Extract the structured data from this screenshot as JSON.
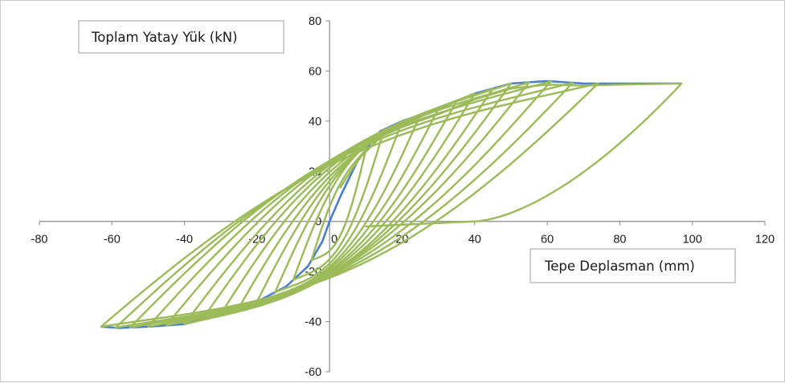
{
  "chart_data": {
    "type": "line",
    "ylabel": "Toplam Yatay Yük (kN)",
    "xlabel": "Tepe Deplasman (mm)",
    "xlim": [
      -80,
      120
    ],
    "ylim": [
      -60,
      80
    ],
    "xticks": [
      -80,
      -60,
      -40,
      -20,
      0,
      20,
      40,
      60,
      80,
      100,
      120
    ],
    "yticks": [
      -60,
      -40,
      -20,
      0,
      20,
      40,
      60,
      80
    ],
    "grid": false,
    "legend": "none",
    "colors": {
      "envelope": "#4a7fcf",
      "hysteresis": "#9bbb59"
    },
    "series": [
      {
        "style": "envelope",
        "points": [
          [
            -63,
            -42
          ],
          [
            -58,
            -42.5
          ],
          [
            -50,
            -42
          ],
          [
            -40,
            -41
          ],
          [
            -30,
            -37
          ],
          [
            -20,
            -32
          ],
          [
            -12,
            -26
          ],
          [
            -6,
            -18
          ],
          [
            -2,
            -8
          ],
          [
            0,
            0
          ],
          [
            3,
            10
          ],
          [
            8,
            25
          ],
          [
            14,
            36
          ],
          [
            20,
            40
          ],
          [
            30,
            45
          ],
          [
            40,
            51
          ],
          [
            50,
            55
          ],
          [
            60,
            56
          ],
          [
            70,
            55
          ],
          [
            80,
            55
          ],
          [
            97,
            55
          ]
        ]
      },
      {
        "style": "hysteresis",
        "loops": [
          {
            "dmax": 10,
            "dmin": -5
          },
          {
            "dmax": 15,
            "dmin": -10
          },
          {
            "dmax": 20,
            "dmin": -15
          },
          {
            "dmax": 25,
            "dmin": -20
          },
          {
            "dmax": 30,
            "dmin": -25
          },
          {
            "dmax": 35,
            "dmin": -30
          },
          {
            "dmax": 40,
            "dmin": -35
          },
          {
            "dmax": 45,
            "dmin": -40
          },
          {
            "dmax": 50,
            "dmin": -45
          },
          {
            "dmax": 55,
            "dmin": -50
          },
          {
            "dmax": 61,
            "dmin": -55
          },
          {
            "dmax": 67,
            "dmin": -59
          },
          {
            "dmax": 74,
            "dmin": -63
          },
          {
            "dmax": 97,
            "dmin": 0
          }
        ]
      }
    ]
  }
}
